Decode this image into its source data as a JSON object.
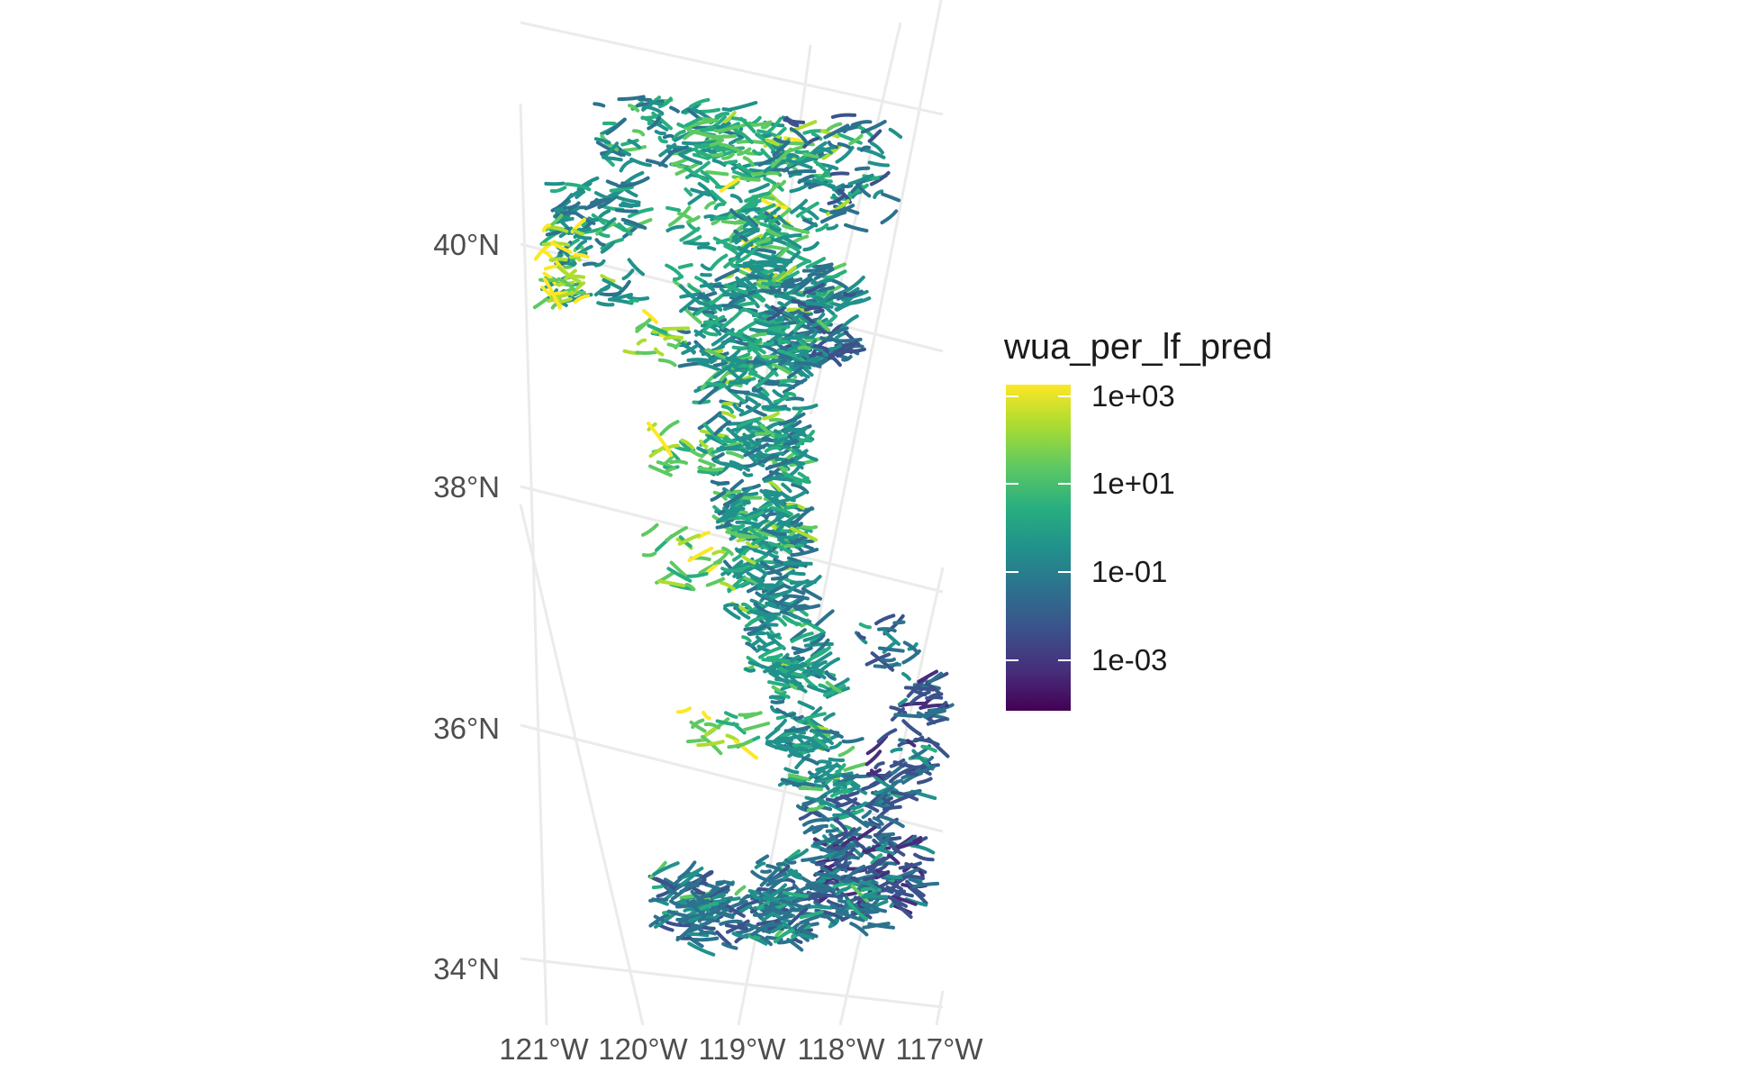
{
  "map": {
    "type": "stream-network-map",
    "projection": "oblique (rotated graticule)",
    "latitude_ticks": [
      "34°N",
      "36°N",
      "38°N",
      "40°N"
    ],
    "longitude_ticks": [
      "121°W",
      "120°W",
      "119°W",
      "118°W",
      "117°W"
    ],
    "grid": true,
    "extent": {
      "lon": [
        -121,
        -117
      ],
      "lat": [
        34,
        41.2
      ]
    }
  },
  "legend": {
    "title": "wua_per_lf_pred",
    "scale": "log10",
    "palette": "viridis",
    "colors": [
      "#440154",
      "#3b528b",
      "#21918c",
      "#5ec962",
      "#fde725"
    ],
    "breaks": [
      "1e+03",
      "1e+01",
      "1e-01",
      "1e-03"
    ],
    "break_values": [
      1000,
      10,
      0.1,
      0.001
    ],
    "range": [
      3e-05,
      3000
    ],
    "placement": "right"
  }
}
